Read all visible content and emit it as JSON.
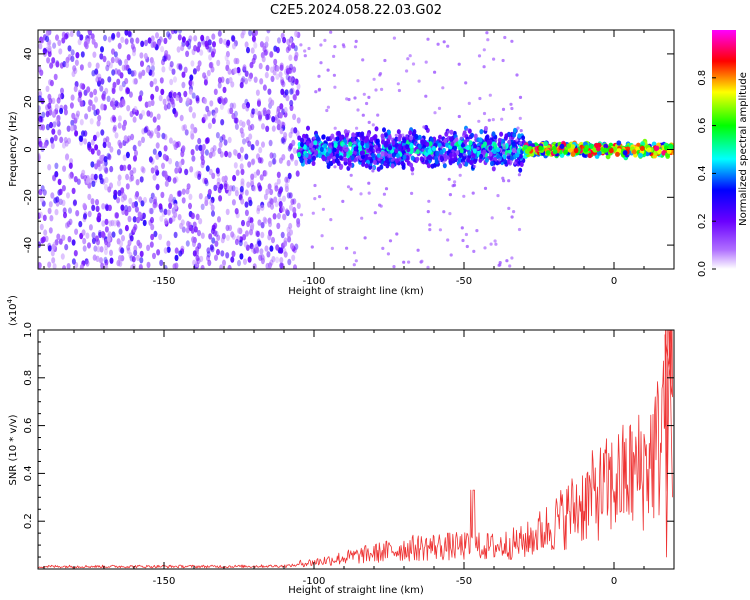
{
  "title": "C2E5.2024.058.22.03.G02",
  "chart_data": [
    {
      "type": "heatmap",
      "xlabel": "Height of straight line (km)",
      "ylabel": "Frequency (Hz)",
      "xlim": [
        -192,
        20
      ],
      "ylim": [
        -50,
        50
      ],
      "xticks": [
        -150,
        -100,
        -50,
        0
      ],
      "xtick_labels": [
        "-150",
        "-100",
        "-50",
        "0"
      ],
      "yticks": [
        -40,
        -20,
        0,
        20,
        40
      ],
      "ytick_labels": [
        "-40",
        "-20",
        "0",
        "20",
        "40"
      ],
      "colorbar": {
        "label": "Normalized spectral amplitude",
        "range": [
          0,
          1
        ],
        "ticks": [
          0.0,
          0.2,
          0.4,
          0.6,
          0.8
        ],
        "tick_labels": [
          "0.0",
          "0.2",
          "0.4",
          "0.6",
          "0.8"
        ],
        "colormap": [
          "#ffffff",
          "#6a00ff",
          "#0000ff",
          "#00ffff",
          "#00ff00",
          "#ffff00",
          "#ff0000",
          "#ff00ff"
        ]
      },
      "regions": [
        {
          "x_range": [
            -192,
            -105
          ],
          "freq_range": [
            -50,
            50
          ],
          "amplitude": 0.1,
          "pattern": "broadband noise"
        },
        {
          "x_range": [
            -105,
            -30
          ],
          "freq_range": [
            -10,
            10
          ],
          "amplitude": 0.35,
          "pattern": "signal band"
        },
        {
          "x_range": [
            -30,
            20
          ],
          "freq_range": [
            -4,
            4
          ],
          "amplitude": 0.8,
          "pattern": "narrow strong signal"
        }
      ],
      "grid": false
    },
    {
      "type": "line",
      "xlabel": "Height of straight line (km)",
      "ylabel": "SNR (10 * v/v)",
      "scale_label": "(x10",
      "scale_exponent": "4",
      "scale_close": ")",
      "xlim": [
        -192,
        20
      ],
      "ylim": [
        0,
        1.0
      ],
      "xticks": [
        -150,
        -100,
        -50,
        0
      ],
      "xtick_labels": [
        "-150",
        "-100",
        "-50",
        "0"
      ],
      "yticks": [
        0.2,
        0.4,
        0.6,
        0.8,
        1.0
      ],
      "ytick_labels": [
        "0.2",
        "0.4",
        "0.6",
        "0.8",
        "1.0"
      ],
      "series": [
        {
          "color": "#ee3333",
          "x": [
            -192,
            -160,
            -130,
            -110,
            -100,
            -90,
            -80,
            -70,
            -60,
            -50,
            -40,
            -30,
            -20,
            -10,
            0,
            10,
            15,
            18
          ],
          "y": [
            0.015,
            0.015,
            0.015,
            0.018,
            0.03,
            0.05,
            0.07,
            0.09,
            0.1,
            0.1,
            0.1,
            0.12,
            0.2,
            0.3,
            0.38,
            0.45,
            0.55,
            0.9
          ]
        }
      ],
      "grid": false
    }
  ]
}
